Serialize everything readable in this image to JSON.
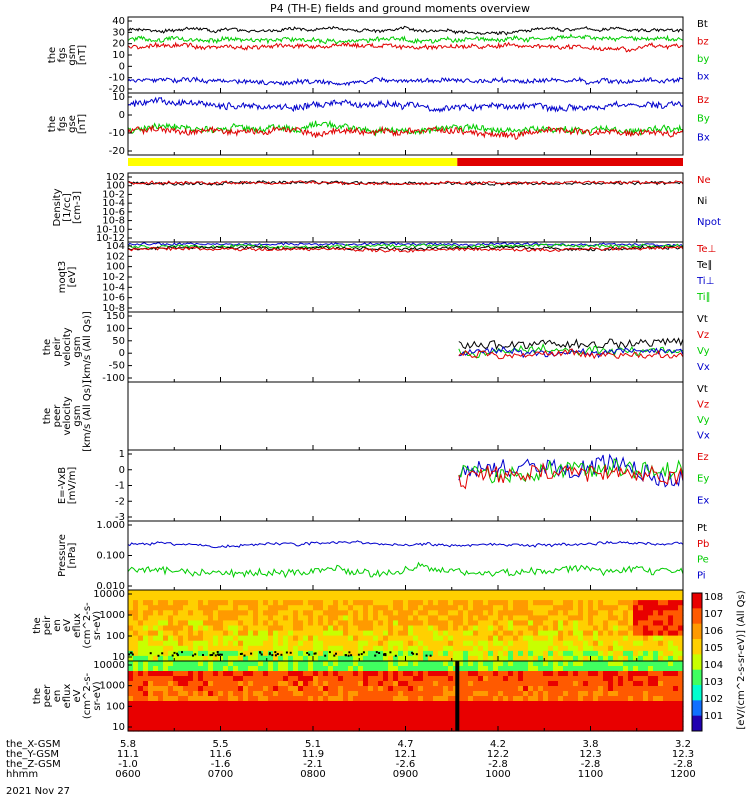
{
  "title": "P4 (TH-E) fields and ground moments overview",
  "date_label": "2021 Nov 27",
  "chart_data": {
    "type": "line",
    "x_ticks": [
      "0600",
      "0700",
      "0800",
      "0900",
      "1000",
      "1100",
      "1200"
    ],
    "footer_rows": [
      {
        "label": "the_X-GSM",
        "values": [
          "5.8",
          "5.5",
          "5.1",
          "4.7",
          "4.2",
          "3.8",
          "3.2"
        ]
      },
      {
        "label": "the_Y-GSM",
        "values": [
          "11.1",
          "11.6",
          "11.9",
          "12.1",
          "12.2",
          "12.3",
          "12.3"
        ]
      },
      {
        "label": "the_Z-GSM",
        "values": [
          "-1.0",
          "-1.6",
          "-2.1",
          "-2.6",
          "-2.8",
          "-2.8",
          "-2.8"
        ]
      },
      {
        "label": "hhmm",
        "values": []
      }
    ],
    "status_bar": {
      "yellow_until_hour": 9.56,
      "red_from_hour": 9.56
    },
    "colors": {
      "black": "#000000",
      "red": "#e00000",
      "green": "#00cc00",
      "blue": "#0000cc",
      "yellow": "#ffff00"
    },
    "panels": [
      {
        "id": "fgs_gsm",
        "ylabel": [
          "the",
          "fgs",
          "gsm",
          "[nT]"
        ],
        "ylim": [
          -20,
          40
        ],
        "ticks": [
          "40",
          "30",
          "20",
          "10",
          "0",
          "-10",
          "-20"
        ],
        "series": [
          {
            "name": "Bt",
            "color": "#000000",
            "approx_level": 30
          },
          {
            "name": "bz",
            "color": "#e00000",
            "approx_level": 17
          },
          {
            "name": "by",
            "color": "#00cc00",
            "approx_level": 22
          },
          {
            "name": "bx",
            "color": "#0000cc",
            "approx_level": -10
          }
        ]
      },
      {
        "id": "fgs_gse",
        "ylabel": [
          "the",
          "fgs",
          "gse",
          "[nT]"
        ],
        "ylim": [
          -25,
          20
        ],
        "ticks": [
          "10",
          "0",
          "-10",
          "-20"
        ],
        "series": [
          {
            "name": "Bz",
            "color": "#e00000",
            "approx_level": -8
          },
          {
            "name": "By",
            "color": "#00cc00",
            "approx_level": -6
          },
          {
            "name": "Bx",
            "color": "#0000cc",
            "approx_level": 11
          }
        ]
      },
      {
        "id": "density",
        "ylabel": [
          "Density",
          "[1/cc]",
          "[cm-3]"
        ],
        "log": true,
        "ticks": [
          "10^2",
          "10^0",
          "10^-2",
          "10^-4",
          "10^-6",
          "10^-8",
          "10^-10",
          "10^-12"
        ],
        "series": [
          {
            "name": "Ne",
            "color": "#e00000",
            "approx_level": "~1"
          },
          {
            "name": "Ni",
            "color": "#000000"
          },
          {
            "name": "Npot",
            "color": "#0000cc"
          }
        ]
      },
      {
        "id": "temperature",
        "ylabel": [
          "moqt3",
          "[eV]"
        ],
        "log": true,
        "ticks": [
          "10^4",
          "10^2",
          "10^0",
          "10^-2",
          "10^-4",
          "10^-6",
          "10^-8"
        ],
        "series": [
          {
            "name": "Te⊥",
            "color": "#e00000"
          },
          {
            "name": "Te∥",
            "color": "#000000"
          },
          {
            "name": "Ti⊥",
            "color": "#0000cc"
          },
          {
            "name": "Ti∥",
            "color": "#00cc00"
          }
        ]
      },
      {
        "id": "peir_velocity",
        "ylabel": [
          "the",
          "peir",
          "velocity",
          "gsm",
          "[km/s (All Qs)]"
        ],
        "ylim": [
          -100,
          150
        ],
        "ticks": [
          "150",
          "100",
          "50",
          "0",
          "-50",
          "-100"
        ],
        "series": [
          {
            "name": "Vt",
            "color": "#000000"
          },
          {
            "name": "Vz",
            "color": "#e00000"
          },
          {
            "name": "Vy",
            "color": "#00cc00"
          },
          {
            "name": "Vx",
            "color": "#0000cc"
          }
        ],
        "data_from_hour": 9.56
      },
      {
        "id": "peer_velocity",
        "ylabel": [
          "the",
          "peer",
          "velocity",
          "gsm",
          "[km/s (All Qs)]"
        ],
        "ticks": [],
        "series": [
          {
            "name": "Vt",
            "color": "#000000"
          },
          {
            "name": "Vz",
            "color": "#e00000"
          },
          {
            "name": "Vy",
            "color": "#00cc00"
          },
          {
            "name": "Vx",
            "color": "#0000cc"
          }
        ]
      },
      {
        "id": "efield",
        "ylabel": [
          "E=-VxB",
          "[mV/m]"
        ],
        "ylim": [
          -3,
          2
        ],
        "ticks": [
          "1",
          "0",
          "-1",
          "-2",
          "-3"
        ],
        "series": [
          {
            "name": "Ez",
            "color": "#e00000"
          },
          {
            "name": "Ey",
            "color": "#00cc00"
          },
          {
            "name": "Ex",
            "color": "#0000cc"
          }
        ],
        "data_from_hour": 9.56
      },
      {
        "id": "pressure",
        "ylabel": [
          "Pressure",
          "[nPa]"
        ],
        "log": true,
        "ticks": [
          "1.000",
          "0.100",
          "0.010"
        ],
        "series": [
          {
            "name": "Pt",
            "color": "#000000"
          },
          {
            "name": "Pb",
            "color": "#e00000"
          },
          {
            "name": "Pe",
            "color": "#00cc00"
          },
          {
            "name": "Pi",
            "color": "#0000cc"
          }
        ]
      },
      {
        "id": "peir_spec",
        "type": "heatmap",
        "ylabel": [
          "the",
          "peir",
          "en",
          "eV",
          "eflux",
          "(cm^2-s-",
          "sr-eV)"
        ],
        "ticks": [
          "10000",
          "1000",
          "100",
          "10"
        ]
      },
      {
        "id": "peer_spec",
        "type": "heatmap",
        "ylabel": [
          "the",
          "peer",
          "en",
          "eflux",
          "eV",
          "(cm^2-s-",
          "sr-eV)"
        ],
        "ticks": [
          "10000",
          "1000",
          "100",
          "10"
        ]
      }
    ],
    "colorbar": {
      "label": "[eV/(cm^2-s-sr-eV)] (All Qs)",
      "ticks": [
        "10^8",
        "10^7",
        "10^6",
        "10^5",
        "10^4",
        "10^3",
        "10^2",
        "10^1"
      ]
    }
  }
}
